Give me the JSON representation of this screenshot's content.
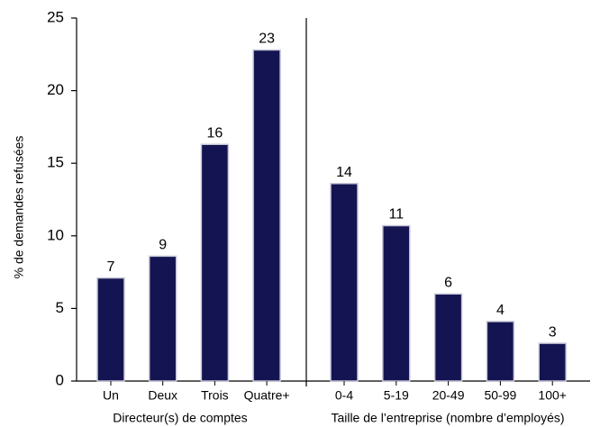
{
  "chart_data": {
    "type": "bar",
    "y_label": "% de demandes refusées",
    "ylim": [
      0,
      25
    ],
    "yticks": [
      0,
      5,
      10,
      15,
      20,
      25
    ],
    "color": "#141452",
    "groups": [
      {
        "label": "Directeur(s) de comptes",
        "categories": [
          "Un",
          "Deux",
          "Trois",
          "Quatre+"
        ],
        "values": [
          7.1,
          8.6,
          16.3,
          22.8
        ],
        "value_labels": [
          "7",
          "9",
          "16",
          "23"
        ]
      },
      {
        "label": "Taille de l’entreprise (nombre d’employés)",
        "categories": [
          "0-4",
          "5-19",
          "20-49",
          "50-99",
          "100+"
        ],
        "values": [
          13.6,
          10.7,
          6.0,
          4.1,
          2.6
        ],
        "value_labels": [
          "14",
          "11",
          "6",
          "4",
          "3"
        ]
      }
    ]
  }
}
